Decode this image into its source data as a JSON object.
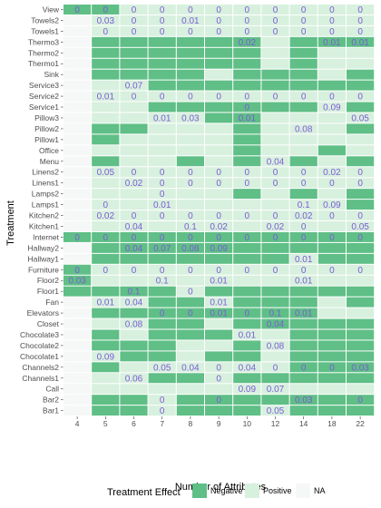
{
  "chart_data": {
    "type": "heatmap",
    "xlabel": "Number of Attributes",
    "ylabel": "Treatment",
    "x": [
      "4",
      "5",
      "6",
      "7",
      "8",
      "9",
      "10",
      "12",
      "14",
      "18",
      "22"
    ],
    "y": [
      "View",
      "Towels2",
      "Towels1",
      "Thermo3",
      "Thermo2",
      "Thermo1",
      "Sink",
      "Service3",
      "Service2",
      "Service1",
      "Pillow3",
      "Pillow2",
      "Pillow1",
      "Office",
      "Menu",
      "Linens2",
      "Linens1",
      "Lamps2",
      "Lamps1",
      "Kitchen2",
      "Kitchen1",
      "Internet",
      "Hallway2",
      "Hallway1",
      "Furniture",
      "Floor2",
      "Floor1",
      "Fan",
      "Elevators",
      "Closet",
      "Chocolate3",
      "Chocolate2",
      "Chocolate1",
      "Channels2",
      "Channels1",
      "Call",
      "Bar2",
      "Bar1"
    ],
    "effects": [
      "NNPPPPPPPPP",
      "NPPPPPPPPPP",
      "NPPPPPPPPPP",
      "NNNNNNNPNNN",
      "NNNNNNNPNPP",
      "NNNNNNNPNPP",
      "NNNNNPNNNPN",
      "NPPNNNNNNNN",
      "NPPPPPPPPPP",
      "NPPNNNNNNPN",
      "NPPPPNNPPPP",
      "NNNPPPNPPPN",
      "NNPPPPNPPPP",
      "NPPPPPNPPNP",
      "NNPPNPNPNPN",
      "NPPPPPPPPPP",
      "NPPPPPPPPPP",
      "NPPPPPNPNPN",
      "NPPPPPPPPPN",
      "NPPPPPPPPPP",
      "NPPPPPPPPPP",
      "NNNNNNNNNNN",
      "NNNNNNNNNNN",
      "NNNNNNNNPNN",
      "NPPPPPPPPPP",
      "NPPPPPPPPPP",
      "NNNNPNNNNNN",
      "NPPNNPNNNPN",
      "NNNNNNNNNPP",
      "NPPNNPNNNNN",
      "NNPNNNPPNNN",
      "NNNNPPNPNNN",
      "NPNNPNNPNNN",
      "NNPPPPPPNNN",
      "NPPNNPNNNNN",
      "NPPPPPPPPPP",
      "NNNPNNNNNNN",
      "NNNPNNNPNNN"
    ],
    "na_cells": [
      {
        "x": "4",
        "y": "Towels2"
      },
      {
        "x": "4",
        "y": "Towels1"
      },
      {
        "x": "4",
        "y": "Thermo3"
      },
      {
        "x": "4",
        "y": "Thermo2"
      },
      {
        "x": "4",
        "y": "Thermo1"
      },
      {
        "x": "4",
        "y": "Sink"
      },
      {
        "x": "4",
        "y": "Service3"
      },
      {
        "x": "4",
        "y": "Service2"
      },
      {
        "x": "4",
        "y": "Service1"
      },
      {
        "x": "4",
        "y": "Pillow3"
      },
      {
        "x": "4",
        "y": "Pillow2"
      },
      {
        "x": "4",
        "y": "Pillow1"
      },
      {
        "x": "4",
        "y": "Office"
      },
      {
        "x": "4",
        "y": "Menu"
      },
      {
        "x": "4",
        "y": "Linens2"
      },
      {
        "x": "4",
        "y": "Linens1"
      },
      {
        "x": "4",
        "y": "Lamps2"
      },
      {
        "x": "4",
        "y": "Lamps1"
      },
      {
        "x": "4",
        "y": "Kitchen2"
      },
      {
        "x": "4",
        "y": "Kitchen1"
      },
      {
        "x": "4",
        "y": "Hallway2"
      },
      {
        "x": "4",
        "y": "Hallway1"
      },
      {
        "x": "4",
        "y": "Fan"
      },
      {
        "x": "4",
        "y": "Elevators"
      },
      {
        "x": "4",
        "y": "Closet"
      },
      {
        "x": "4",
        "y": "Chocolate3"
      },
      {
        "x": "4",
        "y": "Chocolate2"
      },
      {
        "x": "4",
        "y": "Chocolate1"
      },
      {
        "x": "4",
        "y": "Channels2"
      },
      {
        "x": "4",
        "y": "Channels1"
      },
      {
        "x": "4",
        "y": "Call"
      },
      {
        "x": "4",
        "y": "Bar2"
      },
      {
        "x": "4",
        "y": "Bar1"
      }
    ],
    "values": [
      {
        "x": "4",
        "y": "View",
        "v": "0"
      },
      {
        "x": "5",
        "y": "View",
        "v": "0"
      },
      {
        "x": "6",
        "y": "View",
        "v": "0"
      },
      {
        "x": "7",
        "y": "View",
        "v": "0"
      },
      {
        "x": "8",
        "y": "View",
        "v": "0"
      },
      {
        "x": "9",
        "y": "View",
        "v": "0"
      },
      {
        "x": "10",
        "y": "View",
        "v": "0"
      },
      {
        "x": "12",
        "y": "View",
        "v": "0"
      },
      {
        "x": "14",
        "y": "View",
        "v": "0"
      },
      {
        "x": "18",
        "y": "View",
        "v": "0"
      },
      {
        "x": "22",
        "y": "View",
        "v": "0"
      },
      {
        "x": "5",
        "y": "Towels2",
        "v": "0.03"
      },
      {
        "x": "6",
        "y": "Towels2",
        "v": "0"
      },
      {
        "x": "7",
        "y": "Towels2",
        "v": "0"
      },
      {
        "x": "8",
        "y": "Towels2",
        "v": "0.01"
      },
      {
        "x": "9",
        "y": "Towels2",
        "v": "0"
      },
      {
        "x": "10",
        "y": "Towels2",
        "v": "0"
      },
      {
        "x": "12",
        "y": "Towels2",
        "v": "0"
      },
      {
        "x": "14",
        "y": "Towels2",
        "v": "0"
      },
      {
        "x": "18",
        "y": "Towels2",
        "v": "0"
      },
      {
        "x": "22",
        "y": "Towels2",
        "v": "0"
      },
      {
        "x": "5",
        "y": "Towels1",
        "v": "0"
      },
      {
        "x": "6",
        "y": "Towels1",
        "v": "0"
      },
      {
        "x": "7",
        "y": "Towels1",
        "v": "0"
      },
      {
        "x": "8",
        "y": "Towels1",
        "v": "0"
      },
      {
        "x": "9",
        "y": "Towels1",
        "v": "0"
      },
      {
        "x": "10",
        "y": "Towels1",
        "v": "0"
      },
      {
        "x": "12",
        "y": "Towels1",
        "v": "0"
      },
      {
        "x": "14",
        "y": "Towels1",
        "v": "0"
      },
      {
        "x": "18",
        "y": "Towels1",
        "v": "0"
      },
      {
        "x": "22",
        "y": "Towels1",
        "v": "0"
      },
      {
        "x": "10",
        "y": "Thermo3",
        "v": "0.02"
      },
      {
        "x": "18",
        "y": "Thermo3",
        "v": "0.01"
      },
      {
        "x": "22",
        "y": "Thermo3",
        "v": "0.01"
      },
      {
        "x": "6",
        "y": "Service3",
        "v": "0.07"
      },
      {
        "x": "5",
        "y": "Service2",
        "v": "0.01"
      },
      {
        "x": "6",
        "y": "Service2",
        "v": "0"
      },
      {
        "x": "7",
        "y": "Service2",
        "v": "0"
      },
      {
        "x": "8",
        "y": "Service2",
        "v": "0"
      },
      {
        "x": "9",
        "y": "Service2",
        "v": "0"
      },
      {
        "x": "10",
        "y": "Service2",
        "v": "0"
      },
      {
        "x": "12",
        "y": "Service2",
        "v": "0"
      },
      {
        "x": "14",
        "y": "Service2",
        "v": "0"
      },
      {
        "x": "18",
        "y": "Service2",
        "v": "0"
      },
      {
        "x": "22",
        "y": "Service2",
        "v": "0"
      },
      {
        "x": "10",
        "y": "Service1",
        "v": "0"
      },
      {
        "x": "18",
        "y": "Service1",
        "v": "0.09"
      },
      {
        "x": "7",
        "y": "Pillow3",
        "v": "0.01"
      },
      {
        "x": "8",
        "y": "Pillow3",
        "v": "0.03"
      },
      {
        "x": "10",
        "y": "Pillow3",
        "v": "0.01"
      },
      {
        "x": "22",
        "y": "Pillow3",
        "v": "0.05"
      },
      {
        "x": "14",
        "y": "Pillow2",
        "v": "0.08"
      },
      {
        "x": "12",
        "y": "Menu",
        "v": "0.04"
      },
      {
        "x": "5",
        "y": "Linens2",
        "v": "0.05"
      },
      {
        "x": "6",
        "y": "Linens2",
        "v": "0"
      },
      {
        "x": "7",
        "y": "Linens2",
        "v": "0"
      },
      {
        "x": "8",
        "y": "Linens2",
        "v": "0"
      },
      {
        "x": "9",
        "y": "Linens2",
        "v": "0"
      },
      {
        "x": "10",
        "y": "Linens2",
        "v": "0"
      },
      {
        "x": "12",
        "y": "Linens2",
        "v": "0"
      },
      {
        "x": "14",
        "y": "Linens2",
        "v": "0"
      },
      {
        "x": "18",
        "y": "Linens2",
        "v": "0.02"
      },
      {
        "x": "22",
        "y": "Linens2",
        "v": "0"
      },
      {
        "x": "6",
        "y": "Linens1",
        "v": "0.02"
      },
      {
        "x": "7",
        "y": "Linens1",
        "v": "0"
      },
      {
        "x": "8",
        "y": "Linens1",
        "v": "0"
      },
      {
        "x": "9",
        "y": "Linens1",
        "v": "0"
      },
      {
        "x": "10",
        "y": "Linens1",
        "v": "0"
      },
      {
        "x": "12",
        "y": "Linens1",
        "v": "0"
      },
      {
        "x": "14",
        "y": "Linens1",
        "v": "0"
      },
      {
        "x": "18",
        "y": "Linens1",
        "v": "0"
      },
      {
        "x": "22",
        "y": "Linens1",
        "v": "0"
      },
      {
        "x": "7",
        "y": "Lamps2",
        "v": "0"
      },
      {
        "x": "5",
        "y": "Lamps1",
        "v": "0"
      },
      {
        "x": "7",
        "y": "Lamps1",
        "v": "0.01"
      },
      {
        "x": "14",
        "y": "Lamps1",
        "v": "0.1"
      },
      {
        "x": "18",
        "y": "Lamps1",
        "v": "0.09"
      },
      {
        "x": "5",
        "y": "Kitchen2",
        "v": "0.02"
      },
      {
        "x": "6",
        "y": "Kitchen2",
        "v": "0"
      },
      {
        "x": "7",
        "y": "Kitchen2",
        "v": "0"
      },
      {
        "x": "8",
        "y": "Kitchen2",
        "v": "0"
      },
      {
        "x": "9",
        "y": "Kitchen2",
        "v": "0"
      },
      {
        "x": "10",
        "y": "Kitchen2",
        "v": "0"
      },
      {
        "x": "12",
        "y": "Kitchen2",
        "v": "0"
      },
      {
        "x": "14",
        "y": "Kitchen2",
        "v": "0.02"
      },
      {
        "x": "18",
        "y": "Kitchen2",
        "v": "0"
      },
      {
        "x": "22",
        "y": "Kitchen2",
        "v": "0"
      },
      {
        "x": "6",
        "y": "Kitchen1",
        "v": "0.04"
      },
      {
        "x": "8",
        "y": "Kitchen1",
        "v": "0.1"
      },
      {
        "x": "9",
        "y": "Kitchen1",
        "v": "0.02"
      },
      {
        "x": "12",
        "y": "Kitchen1",
        "v": "0.02"
      },
      {
        "x": "14",
        "y": "Kitchen1",
        "v": "0"
      },
      {
        "x": "22",
        "y": "Kitchen1",
        "v": "0.05"
      },
      {
        "x": "4",
        "y": "Internet",
        "v": "0"
      },
      {
        "x": "5",
        "y": "Internet",
        "v": "0"
      },
      {
        "x": "6",
        "y": "Internet",
        "v": "0"
      },
      {
        "x": "7",
        "y": "Internet",
        "v": "0"
      },
      {
        "x": "8",
        "y": "Internet",
        "v": "0"
      },
      {
        "x": "9",
        "y": "Internet",
        "v": "0"
      },
      {
        "x": "10",
        "y": "Internet",
        "v": "0"
      },
      {
        "x": "12",
        "y": "Internet",
        "v": "0"
      },
      {
        "x": "14",
        "y": "Internet",
        "v": "0"
      },
      {
        "x": "18",
        "y": "Internet",
        "v": "0"
      },
      {
        "x": "22",
        "y": "Internet",
        "v": "0"
      },
      {
        "x": "6",
        "y": "Hallway2",
        "v": "0.04"
      },
      {
        "x": "7",
        "y": "Hallway2",
        "v": "0.07"
      },
      {
        "x": "8",
        "y": "Hallway2",
        "v": "0.08"
      },
      {
        "x": "9",
        "y": "Hallway2",
        "v": "0.09"
      },
      {
        "x": "14",
        "y": "Hallway1",
        "v": "0.01"
      },
      {
        "x": "4",
        "y": "Furniture",
        "v": "0"
      },
      {
        "x": "5",
        "y": "Furniture",
        "v": "0"
      },
      {
        "x": "6",
        "y": "Furniture",
        "v": "0"
      },
      {
        "x": "7",
        "y": "Furniture",
        "v": "0"
      },
      {
        "x": "8",
        "y": "Furniture",
        "v": "0"
      },
      {
        "x": "9",
        "y": "Furniture",
        "v": "0"
      },
      {
        "x": "10",
        "y": "Furniture",
        "v": "0"
      },
      {
        "x": "12",
        "y": "Furniture",
        "v": "0"
      },
      {
        "x": "14",
        "y": "Furniture",
        "v": "0"
      },
      {
        "x": "18",
        "y": "Furniture",
        "v": "0"
      },
      {
        "x": "22",
        "y": "Furniture",
        "v": "0"
      },
      {
        "x": "4",
        "y": "Floor2",
        "v": "0.03"
      },
      {
        "x": "7",
        "y": "Floor2",
        "v": "0.1"
      },
      {
        "x": "9",
        "y": "Floor2",
        "v": "0.01"
      },
      {
        "x": "14",
        "y": "Floor2",
        "v": "0.01"
      },
      {
        "x": "6",
        "y": "Floor1",
        "v": "0.1"
      },
      {
        "x": "8",
        "y": "Floor1",
        "v": "0"
      },
      {
        "x": "5",
        "y": "Fan",
        "v": "0.01"
      },
      {
        "x": "6",
        "y": "Fan",
        "v": "0.04"
      },
      {
        "x": "9",
        "y": "Fan",
        "v": "0.01"
      },
      {
        "x": "7",
        "y": "Elevators",
        "v": "0"
      },
      {
        "x": "8",
        "y": "Elevators",
        "v": "0"
      },
      {
        "x": "9",
        "y": "Elevators",
        "v": "0.01"
      },
      {
        "x": "10",
        "y": "Elevators",
        "v": "0"
      },
      {
        "x": "12",
        "y": "Elevators",
        "v": "0.1"
      },
      {
        "x": "14",
        "y": "Elevators",
        "v": "0.01"
      },
      {
        "x": "6",
        "y": "Closet",
        "v": "0.08"
      },
      {
        "x": "12",
        "y": "Closet",
        "v": "0.04"
      },
      {
        "x": "10",
        "y": "Chocolate3",
        "v": "0.01"
      },
      {
        "x": "12",
        "y": "Chocolate2",
        "v": "0.08"
      },
      {
        "x": "5",
        "y": "Chocolate1",
        "v": "0.09"
      },
      {
        "x": "7",
        "y": "Channels2",
        "v": "0.05"
      },
      {
        "x": "8",
        "y": "Channels2",
        "v": "0.04"
      },
      {
        "x": "9",
        "y": "Channels2",
        "v": "0"
      },
      {
        "x": "10",
        "y": "Channels2",
        "v": "0.04"
      },
      {
        "x": "12",
        "y": "Channels2",
        "v": "0"
      },
      {
        "x": "14",
        "y": "Channels2",
        "v": "0"
      },
      {
        "x": "18",
        "y": "Channels2",
        "v": "0"
      },
      {
        "x": "22",
        "y": "Channels2",
        "v": "0.03"
      },
      {
        "x": "6",
        "y": "Channels1",
        "v": "0.06"
      },
      {
        "x": "9",
        "y": "Channels1",
        "v": "0"
      },
      {
        "x": "10",
        "y": "Call",
        "v": "0.09"
      },
      {
        "x": "12",
        "y": "Call",
        "v": "0.07"
      },
      {
        "x": "7",
        "y": "Bar2",
        "v": "0"
      },
      {
        "x": "9",
        "y": "Bar2",
        "v": "0"
      },
      {
        "x": "14",
        "y": "Bar2",
        "v": "0.03"
      },
      {
        "x": "22",
        "y": "Bar2",
        "v": "0"
      },
      {
        "x": "7",
        "y": "Bar1",
        "v": "0"
      },
      {
        "x": "12",
        "y": "Bar1",
        "v": "0.05"
      }
    ],
    "legend": {
      "title": "Treatment Effect",
      "placement": "bottom",
      "items": [
        {
          "key": "N",
          "label": "Negative",
          "color": "#5fbf86"
        },
        {
          "key": "P",
          "label": "Positive",
          "color": "#d8f0de"
        },
        {
          "key": "NA",
          "label": "NA",
          "color": "#f5f8f6"
        }
      ]
    },
    "colors": {
      "negative": "#5fbf86",
      "positive": "#d8f0de",
      "na": "#f5f8f6",
      "value_text": "#7b5cd6",
      "grid": "#ffffff"
    }
  }
}
